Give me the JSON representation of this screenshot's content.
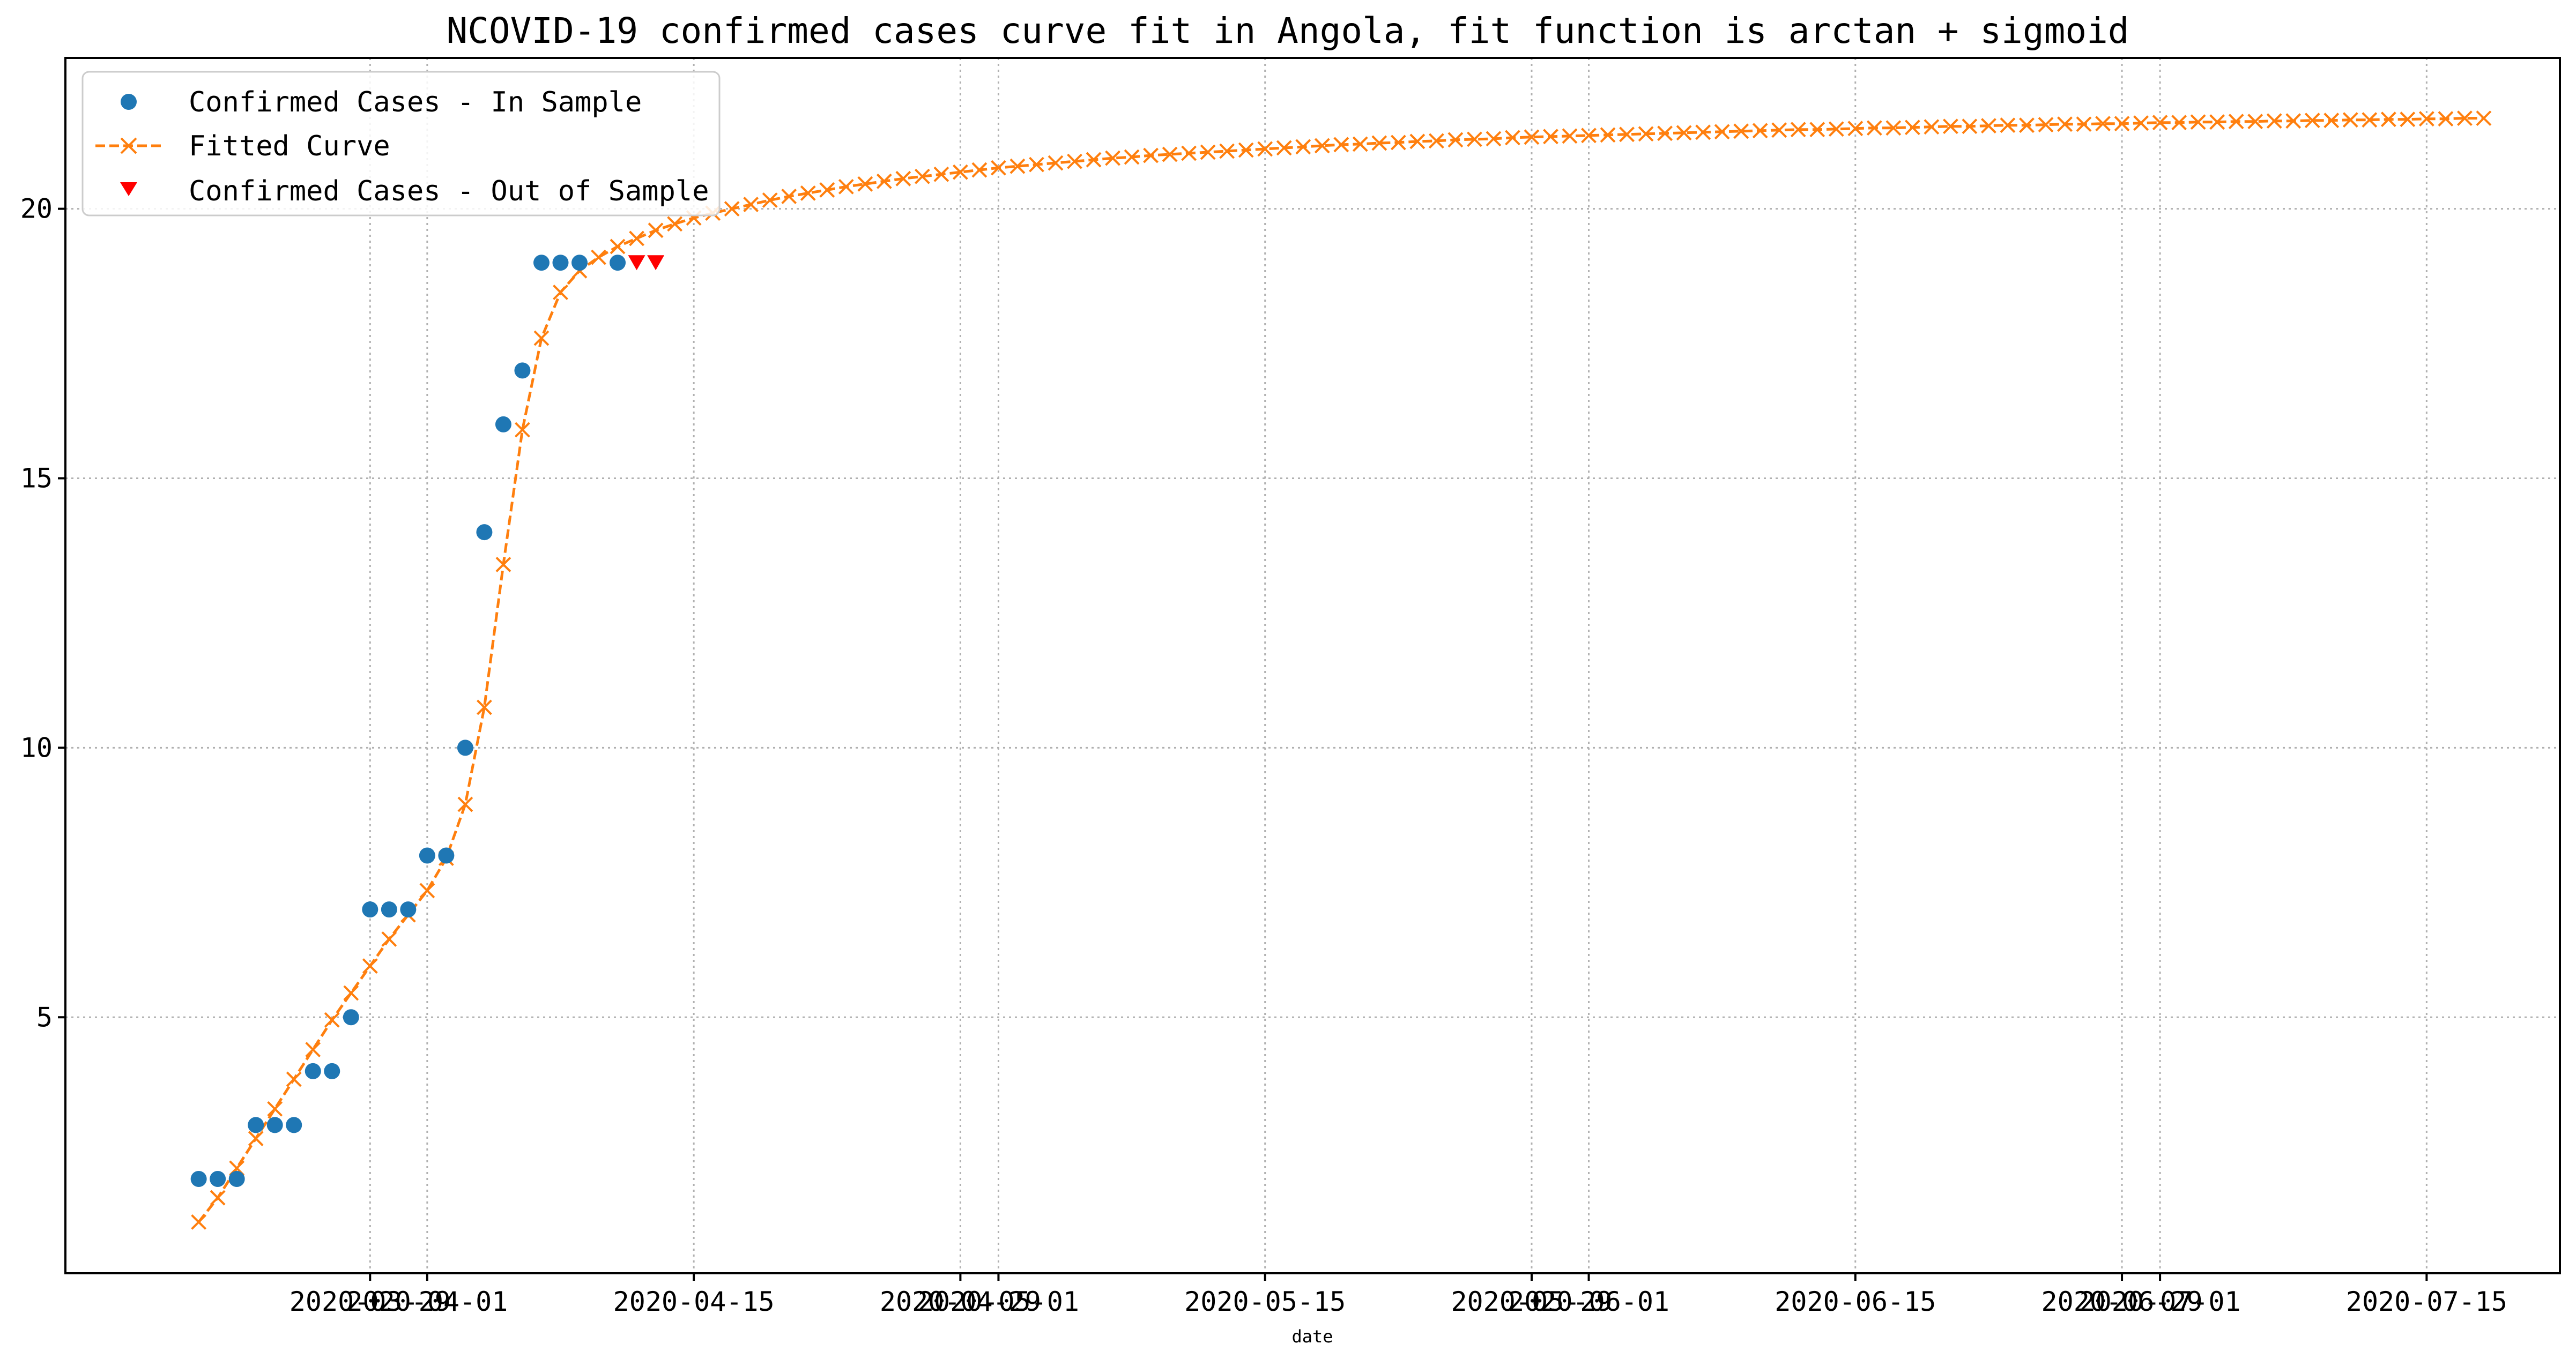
{
  "chart_data": {
    "type": "line",
    "title": "NCOVID-19 confirmed cases curve fit in Angola, fit function is arctan + sigmoid",
    "xlabel": "date",
    "ylabel": "",
    "x_axis": "date",
    "xlim": [
      "2020-03-13",
      "2020-07-22"
    ],
    "ylim": [
      0.25,
      22.8
    ],
    "grid": true,
    "legend_position": "top-left",
    "yticks": [
      5,
      10,
      15,
      20
    ],
    "xticks": [
      "2020-03-29",
      "2020-04-01",
      "2020-04-15",
      "2020-04-29",
      "2020-05-01",
      "2020-05-15",
      "2020-05-29",
      "2020-06-01",
      "2020-06-15",
      "2020-06-29",
      "2020-07-01",
      "2020-07-15"
    ],
    "xtick_labels": [
      "2020-03-29",
      "2020-04-01",
      "2020-04-15",
      "2020-04-29",
      "2020-05-01",
      "2020-05-15",
      "2020-05-29",
      "2020-06-01",
      "2020-06-15",
      "2020-06-29",
      "2020-07-01",
      "2020-07-15"
    ],
    "series": [
      {
        "name": "Confirmed Cases - In Sample",
        "marker": "circle",
        "line": "none",
        "color": "#1f77b4",
        "x": [
          "2020-03-20",
          "2020-03-21",
          "2020-03-22",
          "2020-03-23",
          "2020-03-24",
          "2020-03-25",
          "2020-03-26",
          "2020-03-27",
          "2020-03-28",
          "2020-03-29",
          "2020-03-30",
          "2020-03-31",
          "2020-04-01",
          "2020-04-02",
          "2020-04-03",
          "2020-04-04",
          "2020-04-05",
          "2020-04-06",
          "2020-04-07",
          "2020-04-08",
          "2020-04-09",
          "2020-04-11"
        ],
        "y": [
          2,
          2,
          2,
          3,
          3,
          3,
          4,
          4,
          5,
          7,
          7,
          7,
          8,
          8,
          10,
          14,
          16,
          17,
          19,
          19,
          19,
          19
        ]
      },
      {
        "name": "Fitted Curve",
        "marker": "x",
        "line": "dashed",
        "color": "#ff7f0e",
        "x_start": "2020-03-20",
        "x_end": "2020-07-18",
        "step_days": 1,
        "y": [
          1.2,
          1.65,
          2.2,
          2.75,
          3.3,
          3.85,
          4.4,
          4.95,
          5.45,
          5.95,
          6.45,
          6.9,
          7.35,
          7.95,
          8.95,
          10.75,
          13.4,
          15.9,
          17.6,
          18.45,
          18.85,
          19.1,
          19.3,
          19.45,
          19.6,
          19.72,
          19.83,
          19.92,
          20.0,
          20.08,
          20.16,
          20.23,
          20.29,
          20.35,
          20.41,
          20.46,
          20.51,
          20.56,
          20.6,
          20.64,
          20.68,
          20.72,
          20.76,
          20.79,
          20.82,
          20.85,
          20.88,
          20.91,
          20.94,
          20.96,
          20.99,
          21.01,
          21.03,
          21.05,
          21.07,
          21.09,
          21.11,
          21.13,
          21.15,
          21.17,
          21.19,
          21.2,
          21.22,
          21.23,
          21.25,
          21.26,
          21.28,
          21.29,
          21.3,
          21.32,
          21.33,
          21.34,
          21.35,
          21.36,
          21.37,
          21.38,
          21.39,
          21.4,
          21.41,
          21.42,
          21.43,
          21.44,
          21.45,
          21.46,
          21.47,
          21.47,
          21.48,
          21.49,
          21.5,
          21.5,
          21.51,
          21.52,
          21.53,
          21.53,
          21.54,
          21.55,
          21.55,
          21.56,
          21.57,
          21.57,
          21.58,
          21.58,
          21.59,
          21.6,
          21.6,
          21.61,
          21.61,
          21.62,
          21.62,
          21.63,
          21.63,
          21.64,
          21.64,
          21.65,
          21.65,
          21.66,
          21.66,
          21.67,
          21.67,
          21.68,
          21.68
        ]
      },
      {
        "name": "Confirmed Cases - Out of Sample",
        "marker": "triangle-down",
        "line": "none",
        "color": "#ff0000",
        "x": [
          "2020-04-12",
          "2020-04-13"
        ],
        "y": [
          19,
          19
        ]
      }
    ]
  }
}
